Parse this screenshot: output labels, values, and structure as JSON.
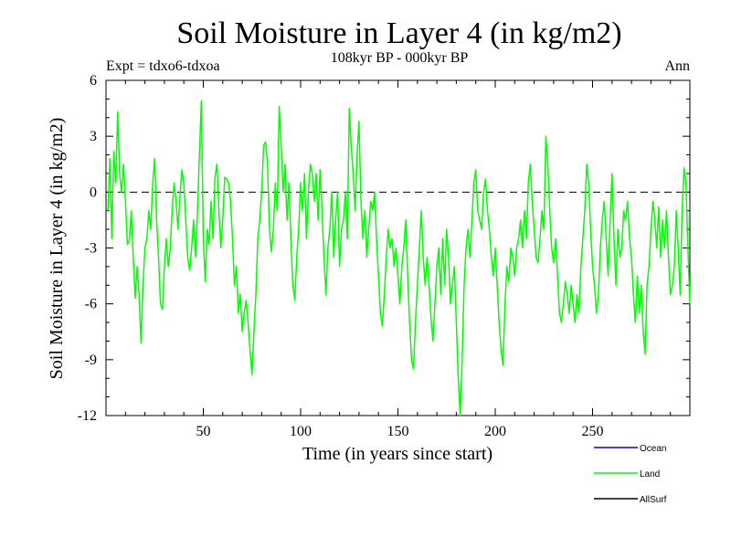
{
  "chart_data": {
    "type": "line",
    "title": "Soil Moisture in Layer 4 (in kg/m2)",
    "subtitle": "108kyr BP - 000kyr BP",
    "annotation_left": "Expt = tdxo6-tdxoa",
    "annotation_right": "Ann",
    "xlabel": "Time (in years since start)",
    "ylabel": "Soil Moisture in Layer 4 (in kg/m2)",
    "xlim": [
      0,
      300
    ],
    "ylim": [
      -12,
      6
    ],
    "x_ticks": [
      50,
      100,
      150,
      200,
      250
    ],
    "x_tick_labels": [
      "50",
      "100",
      "150",
      "200",
      "250"
    ],
    "y_ticks": [
      6,
      3,
      0,
      -3,
      -6,
      -9,
      -12
    ],
    "y_tick_labels": [
      "6",
      "3",
      "0",
      "-3",
      "-6",
      "-9",
      "-12"
    ],
    "reference_line_y": 0,
    "legend_placement": "bottom-right",
    "legend": [
      {
        "name": "Ocean",
        "color": "#0000ff"
      },
      {
        "name": "Land",
        "color": "#00ff00"
      },
      {
        "name": "AllSurf",
        "color": "#000000"
      }
    ],
    "series": [
      {
        "name": "Land",
        "color": "#00ff00",
        "points": [
          [
            1,
            -1.0
          ],
          [
            2,
            1.8
          ],
          [
            3,
            -2.5
          ],
          [
            4,
            2.2
          ],
          [
            5,
            0.5
          ],
          [
            6,
            4.3
          ],
          [
            7,
            1.0
          ],
          [
            8,
            0.0
          ],
          [
            9,
            1.5
          ],
          [
            10,
            -0.5
          ],
          [
            11,
            -2.8
          ],
          [
            12,
            -2.6
          ],
          [
            13,
            -1.0
          ],
          [
            14,
            -3.5
          ],
          [
            15,
            -5.7
          ],
          [
            16,
            -4.0
          ],
          [
            17,
            -5.5
          ],
          [
            18,
            -8.1
          ],
          [
            19,
            -5.0
          ],
          [
            20,
            -3.0
          ],
          [
            21,
            -2.5
          ],
          [
            22,
            -1.0
          ],
          [
            23,
            -2.0
          ],
          [
            24,
            0.5
          ],
          [
            25,
            1.8
          ],
          [
            26,
            -1.5
          ],
          [
            27,
            -3.5
          ],
          [
            28,
            -6.0
          ],
          [
            29,
            -6.3
          ],
          [
            30,
            -4.0
          ],
          [
            31,
            -2.5
          ],
          [
            32,
            -4.0
          ],
          [
            33,
            -3.0
          ],
          [
            34,
            -1.0
          ],
          [
            35,
            0.5
          ],
          [
            36,
            -0.5
          ],
          [
            37,
            -2.0
          ],
          [
            38,
            -0.2
          ],
          [
            39,
            1.2
          ],
          [
            40,
            0.5
          ],
          [
            41,
            -1.5
          ],
          [
            42,
            -3.5
          ],
          [
            43,
            -4.2
          ],
          [
            44,
            -3.0
          ],
          [
            45,
            -1.5
          ],
          [
            46,
            -3.5
          ],
          [
            47,
            -1.0
          ],
          [
            48,
            2.0
          ],
          [
            49,
            4.9
          ],
          [
            50,
            -2.5
          ],
          [
            51,
            -4.8
          ],
          [
            52,
            -2.0
          ],
          [
            53,
            -2.8
          ],
          [
            54,
            -0.5
          ],
          [
            55,
            -2.5
          ],
          [
            56,
            0.8
          ],
          [
            57,
            1.5
          ],
          [
            58,
            -1.0
          ],
          [
            59,
            -3.0
          ],
          [
            60,
            -1.5
          ],
          [
            61,
            0.8
          ],
          [
            62,
            0.7
          ],
          [
            63,
            0.5
          ],
          [
            64,
            -0.5
          ],
          [
            65,
            -2.5
          ],
          [
            66,
            -5.0
          ],
          [
            67,
            -4.0
          ],
          [
            68,
            -6.5
          ],
          [
            69,
            -5.5
          ],
          [
            70,
            -7.5
          ],
          [
            71,
            -6.5
          ],
          [
            72,
            -5.8
          ],
          [
            73,
            -7.0
          ],
          [
            74,
            -8.5
          ],
          [
            75,
            -9.8
          ],
          [
            76,
            -7.5
          ],
          [
            77,
            -5.5
          ],
          [
            78,
            -2.5
          ],
          [
            79,
            -1.5
          ],
          [
            80,
            0.0
          ],
          [
            81,
            2.5
          ],
          [
            82,
            2.7
          ],
          [
            83,
            1.5
          ],
          [
            84,
            -2.0
          ],
          [
            85,
            -3.2
          ],
          [
            86,
            -2.0
          ],
          [
            87,
            0.5
          ],
          [
            88,
            -1.0
          ],
          [
            89,
            4.6
          ],
          [
            90,
            2.5
          ],
          [
            91,
            0.0
          ],
          [
            92,
            1.5
          ],
          [
            93,
            -1.5
          ],
          [
            94,
            0.5
          ],
          [
            95,
            -2.5
          ],
          [
            96,
            -5.0
          ],
          [
            97,
            -5.8
          ],
          [
            98,
            -3.5
          ],
          [
            99,
            -2.0
          ],
          [
            100,
            0.5
          ],
          [
            101,
            -1.0
          ],
          [
            102,
            1.0
          ],
          [
            103,
            -2.5
          ],
          [
            104,
            0.0
          ],
          [
            105,
            1.5
          ],
          [
            106,
            1.0
          ],
          [
            107,
            -0.5
          ],
          [
            108,
            1.0
          ],
          [
            109,
            -1.5
          ],
          [
            110,
            1.2
          ],
          [
            111,
            -1.0
          ],
          [
            112,
            -3.5
          ],
          [
            113,
            -5.5
          ],
          [
            114,
            -3.0
          ],
          [
            115,
            -2.0
          ],
          [
            116,
            0.0
          ],
          [
            117,
            -3.5
          ],
          [
            118,
            -1.5
          ],
          [
            119,
            0.0
          ],
          [
            120,
            -4.0
          ],
          [
            121,
            -2.0
          ],
          [
            122,
            -1.5
          ],
          [
            123,
            0.0
          ],
          [
            124,
            -2.5
          ],
          [
            125,
            4.5
          ],
          [
            126,
            2.5
          ],
          [
            127,
            1.0
          ],
          [
            128,
            -1.0
          ],
          [
            129,
            2.0
          ],
          [
            130,
            3.8
          ],
          [
            131,
            -0.5
          ],
          [
            132,
            -2.5
          ],
          [
            133,
            -1.0
          ],
          [
            134,
            -3.5
          ],
          [
            135,
            -2.0
          ],
          [
            136,
            -0.5
          ],
          [
            137,
            -1.0
          ],
          [
            138,
            0.0
          ],
          [
            139,
            -2.5
          ],
          [
            140,
            -4.5
          ],
          [
            141,
            -6.5
          ],
          [
            142,
            -7.2
          ],
          [
            143,
            -5.5
          ],
          [
            144,
            -3.5
          ],
          [
            145,
            -2.0
          ],
          [
            146,
            -3.0
          ],
          [
            147,
            -2.5
          ],
          [
            148,
            -4.0
          ],
          [
            149,
            -3.0
          ],
          [
            150,
            -4.5
          ],
          [
            151,
            -6.0
          ],
          [
            152,
            -4.0
          ],
          [
            153,
            -3.0
          ],
          [
            154,
            -1.5
          ],
          [
            155,
            -4.5
          ],
          [
            156,
            -7.0
          ],
          [
            157,
            -9.0
          ],
          [
            158,
            -9.5
          ],
          [
            159,
            -7.0
          ],
          [
            160,
            -5.0
          ],
          [
            161,
            -3.0
          ],
          [
            162,
            -1.0
          ],
          [
            163,
            -3.5
          ],
          [
            164,
            -5.0
          ],
          [
            165,
            -3.5
          ],
          [
            166,
            -5.0
          ],
          [
            167,
            -6.8
          ],
          [
            168,
            -8.0
          ],
          [
            169,
            -6.0
          ],
          [
            170,
            -4.0
          ],
          [
            171,
            -3.0
          ],
          [
            172,
            -5.5
          ],
          [
            173,
            -2.5
          ],
          [
            174,
            -5.0
          ],
          [
            175,
            -2.0
          ],
          [
            176,
            -3.5
          ],
          [
            177,
            -6.0
          ],
          [
            178,
            -5.0
          ],
          [
            179,
            -4.0
          ],
          [
            180,
            -7.0
          ],
          [
            181,
            -10.0
          ],
          [
            182,
            -12.0
          ],
          [
            183,
            -9.0
          ],
          [
            184,
            -5.0
          ],
          [
            185,
            -3.0
          ],
          [
            186,
            -2.0
          ],
          [
            187,
            -3.5
          ],
          [
            188,
            -1.5
          ],
          [
            189,
            0.5
          ],
          [
            190,
            1.2
          ],
          [
            191,
            -1.0
          ],
          [
            192,
            -1.5
          ],
          [
            193,
            -2.0
          ],
          [
            194,
            0.0
          ],
          [
            195,
            0.7
          ],
          [
            196,
            -1.0
          ],
          [
            197,
            -2.0
          ],
          [
            198,
            -3.5
          ],
          [
            199,
            -4.5
          ],
          [
            200,
            -3.0
          ],
          [
            201,
            -5.0
          ],
          [
            202,
            -7.0
          ],
          [
            203,
            -8.5
          ],
          [
            204,
            -9.3
          ],
          [
            205,
            -6.0
          ],
          [
            206,
            -4.0
          ],
          [
            207,
            -4.8
          ],
          [
            208,
            -3.0
          ],
          [
            209,
            -3.5
          ],
          [
            210,
            -4.5
          ],
          [
            211,
            -3.0
          ],
          [
            212,
            -2.5
          ],
          [
            213,
            -1.5
          ],
          [
            214,
            -3.0
          ],
          [
            215,
            -1.0
          ],
          [
            216,
            -2.5
          ],
          [
            217,
            0.5
          ],
          [
            218,
            1.5
          ],
          [
            219,
            -0.5
          ],
          [
            220,
            -2.0
          ],
          [
            221,
            -3.5
          ],
          [
            222,
            -3.8
          ],
          [
            223,
            -2.5
          ],
          [
            224,
            -1.0
          ],
          [
            225,
            -2.0
          ],
          [
            226,
            3.0
          ],
          [
            227,
            1.5
          ],
          [
            228,
            -1.0
          ],
          [
            229,
            -3.0
          ],
          [
            230,
            -3.8
          ],
          [
            231,
            -2.5
          ],
          [
            232,
            -4.5
          ],
          [
            233,
            -6.5
          ],
          [
            234,
            -7.0
          ],
          [
            235,
            -6.0
          ],
          [
            236,
            -4.8
          ],
          [
            237,
            -5.5
          ],
          [
            238,
            -6.5
          ],
          [
            239,
            -5.0
          ],
          [
            240,
            -6.0
          ],
          [
            241,
            -7.0
          ],
          [
            242,
            -5.5
          ],
          [
            243,
            -6.5
          ],
          [
            244,
            -4.0
          ],
          [
            245,
            -2.5
          ],
          [
            246,
            -1.0
          ],
          [
            247,
            1.5
          ],
          [
            248,
            0.5
          ],
          [
            249,
            -2.0
          ],
          [
            250,
            -4.0
          ],
          [
            251,
            -5.0
          ],
          [
            252,
            -6.5
          ],
          [
            253,
            -5.5
          ],
          [
            254,
            -3.0
          ],
          [
            255,
            -1.5
          ],
          [
            256,
            -0.5
          ],
          [
            257,
            -2.5
          ],
          [
            258,
            -4.5
          ],
          [
            259,
            -1.5
          ],
          [
            260,
            1.0
          ],
          [
            261,
            -2.5
          ],
          [
            262,
            -5.0
          ],
          [
            263,
            -2.0
          ],
          [
            264,
            -3.5
          ],
          [
            265,
            -3.0
          ],
          [
            266,
            -1.0
          ],
          [
            267,
            -1.5
          ],
          [
            268,
            -0.5
          ],
          [
            269,
            -2.5
          ],
          [
            270,
            -3.5
          ],
          [
            271,
            -5.5
          ],
          [
            272,
            -7.0
          ],
          [
            273,
            -4.5
          ],
          [
            274,
            -6.5
          ],
          [
            275,
            -5.0
          ],
          [
            276,
            -7.5
          ],
          [
            277,
            -8.7
          ],
          [
            278,
            -5.0
          ],
          [
            279,
            -4.0
          ],
          [
            280,
            -2.0
          ],
          [
            281,
            -0.5
          ],
          [
            282,
            -1.5
          ],
          [
            283,
            -3.0
          ],
          [
            284,
            -0.8
          ],
          [
            285,
            -3.5
          ],
          [
            286,
            -1.5
          ],
          [
            287,
            -3.0
          ],
          [
            288,
            -1.0
          ],
          [
            289,
            -3.5
          ],
          [
            290,
            -5.5
          ],
          [
            291,
            -5.0
          ],
          [
            292,
            -4.0
          ],
          [
            293,
            -1.0
          ],
          [
            294,
            -3.0
          ],
          [
            295,
            -5.5
          ],
          [
            296,
            -1.0
          ],
          [
            297,
            1.3
          ],
          [
            298,
            0.5
          ],
          [
            299,
            -3.0
          ],
          [
            300,
            -6.0
          ]
        ]
      }
    ]
  }
}
